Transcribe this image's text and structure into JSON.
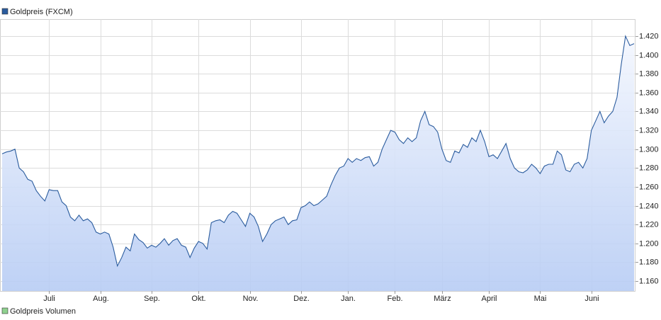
{
  "chart_data": {
    "type": "line",
    "grid": true,
    "legend": "top-left",
    "categories": [
      null,
      null,
      null,
      null,
      null,
      null,
      null,
      null,
      null,
      null,
      null,
      "Juli",
      null,
      null,
      null,
      null,
      null,
      null,
      null,
      null,
      null,
      null,
      null,
      "Aug.",
      null,
      null,
      null,
      null,
      null,
      null,
      null,
      null,
      null,
      null,
      null,
      "Sep.",
      null,
      null,
      null,
      null,
      null,
      null,
      null,
      null,
      null,
      null,
      "Okt.",
      null,
      null,
      null,
      null,
      null,
      null,
      null,
      null,
      null,
      null,
      null,
      "Nov.",
      null,
      null,
      null,
      null,
      null,
      null,
      null,
      null,
      null,
      null,
      null,
      "Dez.",
      null,
      null,
      null,
      null,
      null,
      null,
      null,
      null,
      null,
      null,
      "Jan.",
      null,
      null,
      null,
      null,
      null,
      null,
      null,
      null,
      null,
      null,
      "Feb.",
      null,
      null,
      null,
      null,
      null,
      null,
      null,
      null,
      null,
      null,
      "März",
      null,
      null,
      null,
      null,
      null,
      null,
      null,
      null,
      null,
      null,
      "April",
      null,
      null,
      null,
      null,
      null,
      null,
      null,
      null,
      null,
      null,
      null,
      "Mai",
      null,
      null,
      null,
      null,
      null,
      null,
      null,
      null,
      null,
      null,
      null,
      "Juni",
      null,
      null,
      null,
      null,
      null,
      null,
      null,
      null,
      null,
      null
    ],
    "series": [
      {
        "name": "Goldpreis (FXCM)",
        "color": "#2b5c9e",
        "values": [
          1.295,
          1.297,
          1.298,
          1.3,
          1.28,
          1.276,
          1.268,
          1.266,
          1.256,
          1.25,
          1.245,
          1.257,
          1.256,
          1.256,
          1.244,
          1.24,
          1.228,
          1.224,
          1.23,
          1.224,
          1.226,
          1.222,
          1.212,
          1.21,
          1.212,
          1.21,
          1.196,
          1.176,
          1.185,
          1.196,
          1.192,
          1.21,
          1.204,
          1.201,
          1.195,
          1.198,
          1.196,
          1.2,
          1.205,
          1.198,
          1.203,
          1.205,
          1.198,
          1.196,
          1.185,
          1.195,
          1.202,
          1.2,
          1.194,
          1.222,
          1.224,
          1.225,
          1.222,
          1.23,
          1.234,
          1.232,
          1.225,
          1.218,
          1.232,
          1.228,
          1.218,
          1.202,
          1.21,
          1.22,
          1.224,
          1.226,
          1.228,
          1.22,
          1.224,
          1.225,
          1.238,
          1.24,
          1.244,
          1.24,
          1.242,
          1.246,
          1.25,
          1.262,
          1.272,
          1.28,
          1.282,
          1.29,
          1.286,
          1.29,
          1.288,
          1.291,
          1.292,
          1.282,
          1.286,
          1.3,
          1.31,
          1.32,
          1.318,
          1.31,
          1.306,
          1.312,
          1.308,
          1.312,
          1.33,
          1.34,
          1.326,
          1.324,
          1.318,
          1.3,
          1.288,
          1.286,
          1.298,
          1.296,
          1.305,
          1.302,
          1.312,
          1.308,
          1.32,
          1.308,
          1.292,
          1.294,
          1.29,
          1.298,
          1.306,
          1.29,
          1.28,
          1.276,
          1.275,
          1.278,
          1.284,
          1.28,
          1.274,
          1.282,
          1.284,
          1.284,
          1.298,
          1.294,
          1.278,
          1.276,
          1.284,
          1.286,
          1.28,
          1.29,
          1.32,
          1.33,
          1.34,
          1.328,
          1.335,
          1.34,
          1.355,
          1.39,
          1.42,
          1.41,
          1.412
        ]
      }
    ],
    "volume_label": "Goldpreis Volumen",
    "volume_color": "#8fd18f",
    "ylim": [
      1.1495,
      1.438
    ],
    "yticks": [
      {
        "value": 1.16,
        "label": "1.160"
      },
      {
        "value": 1.18,
        "label": "1.180"
      },
      {
        "value": 1.2,
        "label": "1.200"
      },
      {
        "value": 1.22,
        "label": "1.220"
      },
      {
        "value": 1.24,
        "label": "1.240"
      },
      {
        "value": 1.26,
        "label": "1.260"
      },
      {
        "value": 1.28,
        "label": "1.280"
      },
      {
        "value": 1.3,
        "label": "1.300"
      },
      {
        "value": 1.32,
        "label": "1.320"
      },
      {
        "value": 1.34,
        "label": "1.340"
      },
      {
        "value": 1.36,
        "label": "1.360"
      },
      {
        "value": 1.38,
        "label": "1.380"
      },
      {
        "value": 1.4,
        "label": "1.400"
      },
      {
        "value": 1.42,
        "label": "1.420"
      }
    ]
  }
}
